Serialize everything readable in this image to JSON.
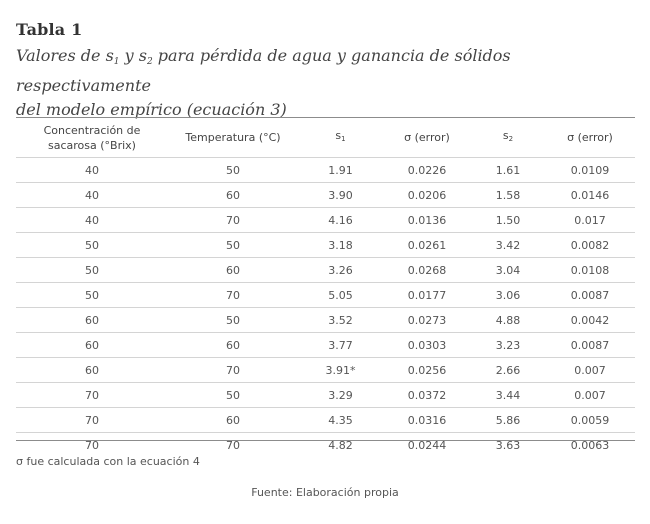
{
  "table_label": "Tabla 1",
  "caption": {
    "part1": "Valores de s",
    "sub1": "1",
    "part2": " y s",
    "sub2": "2",
    "part3": " para pérdida de agua y ganancia de sólidos respectivamente",
    "line2": "del modelo empírico (ecuación 3)"
  },
  "headers": {
    "concentration_line1": "Concentración de",
    "concentration_line2": "sacarosa (°Brix)",
    "temperature": "Temperatura (°C)",
    "s1": "s",
    "s1_sub": "1",
    "sigma1": "σ (error)",
    "s2": "s",
    "s2_sub": "2",
    "sigma2": "σ (error)"
  },
  "rows": [
    [
      "40",
      "50",
      "1.91",
      "0.0226",
      "1.61",
      "0.0109"
    ],
    [
      "40",
      "60",
      "3.90",
      "0.0206",
      "1.58",
      "0.0146"
    ],
    [
      "40",
      "70",
      "4.16",
      "0.0136",
      "1.50",
      "0.017"
    ],
    [
      "50",
      "50",
      "3.18",
      "0.0261",
      "3.42",
      "0.0082"
    ],
    [
      "50",
      "60",
      "3.26",
      "0.0268",
      "3.04",
      "0.0108"
    ],
    [
      "50",
      "70",
      "5.05",
      "0.0177",
      "3.06",
      "0.0087"
    ],
    [
      "60",
      "50",
      "3.52",
      "0.0273",
      "4.88",
      "0.0042"
    ],
    [
      "60",
      "60",
      "3.77",
      "0.0303",
      "3.23",
      "0.0087"
    ],
    [
      "60",
      "70",
      "3.91*",
      "0.0256",
      "2.66",
      "0.007"
    ],
    [
      "70",
      "50",
      "3.29",
      "0.0372",
      "3.44",
      "0.007"
    ],
    [
      "70",
      "60",
      "4.35",
      "0.0316",
      "5.86",
      "0.0059"
    ],
    [
      "70",
      "70",
      "4.82",
      "0.0244",
      "3.63",
      "0.0063"
    ]
  ],
  "footnote": "σ  fue calculada con la ecuación 4",
  "source": "Fuente: Elaboración propia"
}
